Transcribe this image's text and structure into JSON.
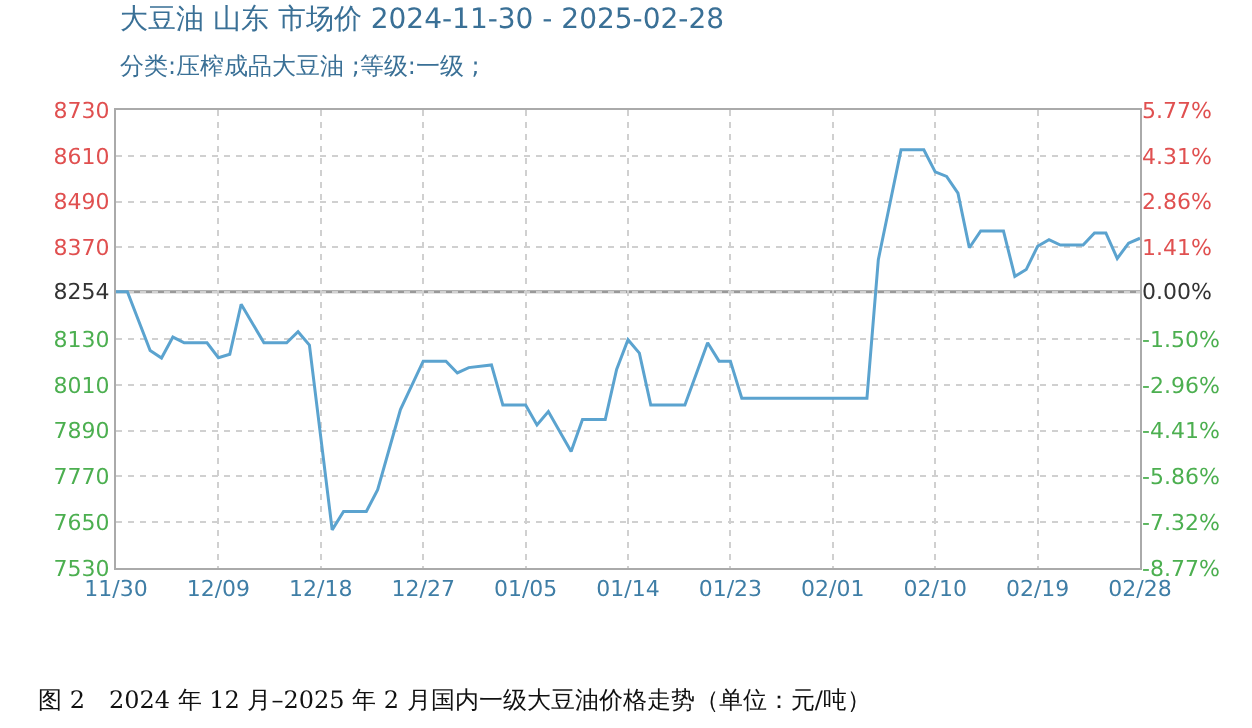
{
  "chart_data": {
    "type": "line",
    "title": "大豆油 山东 市场价 2024-11-30 - 2025-02-28",
    "subtitle": "分类:压榨成品大豆油 ;等级:一级 ;",
    "annotations": [
      "图 2　2024 年 12 月–2025 年 2 月国内一级大豆油价格走势（单位：元/吨）"
    ],
    "x": [
      "2024-11-30",
      "2024-12-01",
      "2024-12-03",
      "2024-12-04",
      "2024-12-05",
      "2024-12-06",
      "2024-12-08",
      "2024-12-09",
      "2024-12-10",
      "2024-12-11",
      "2024-12-13",
      "2024-12-15",
      "2024-12-16",
      "2024-12-17",
      "2024-12-19",
      "2024-12-20",
      "2024-12-22",
      "2024-12-23",
      "2024-12-25",
      "2024-12-27",
      "2024-12-29",
      "2024-12-30",
      "2024-12-31",
      "2025-01-02",
      "2025-01-03",
      "2025-01-05",
      "2025-01-06",
      "2025-01-07",
      "2025-01-09",
      "2025-01-10",
      "2025-01-12",
      "2025-01-13",
      "2025-01-14",
      "2025-01-15",
      "2025-01-16",
      "2025-01-19",
      "2025-01-21",
      "2025-01-22",
      "2025-01-23",
      "2025-01-24",
      "2025-02-04",
      "2025-02-05",
      "2025-02-07",
      "2025-02-09",
      "2025-02-10",
      "2025-02-11",
      "2025-02-12",
      "2025-02-13",
      "2025-02-14",
      "2025-02-16",
      "2025-02-17",
      "2025-02-18",
      "2025-02-19",
      "2025-02-20",
      "2025-02-21",
      "2025-02-23",
      "2025-02-24",
      "2025-02-25",
      "2025-02-26",
      "2025-02-27",
      "2025-02-28"
    ],
    "series": [
      {
        "color": "#5ba3cf",
        "values": [
          8254,
          8254,
          8100,
          8080,
          8135,
          8120,
          8120,
          8081,
          8090,
          8221,
          8120,
          8120,
          8149,
          8114,
          7630,
          7678,
          7678,
          7735,
          7945,
          8072,
          8072,
          8041,
          8055,
          8062,
          7957,
          7957,
          7905,
          7940,
          7835,
          7919,
          7919,
          8050,
          8128,
          8093,
          7957,
          7957,
          8120,
          8072,
          8072,
          7975,
          7975,
          8338,
          8626,
          8626,
          8568,
          8556,
          8512,
          8369,
          8413,
          8413,
          8294,
          8312,
          8373,
          8390,
          8376,
          8376,
          8408,
          8408,
          8341,
          8381,
          8394
        ]
      }
    ],
    "xlim": [
      "2024-11-30",
      "2025-02-28"
    ],
    "xticks": [
      {
        "value": "2024-11-30",
        "label": "11/30"
      },
      {
        "value": "2024-12-09",
        "label": "12/09"
      },
      {
        "value": "2024-12-18",
        "label": "12/18"
      },
      {
        "value": "2024-12-27",
        "label": "12/27"
      },
      {
        "value": "2025-01-05",
        "label": "01/05"
      },
      {
        "value": "2025-01-14",
        "label": "01/14"
      },
      {
        "value": "2025-01-23",
        "label": "01/23"
      },
      {
        "value": "2025-02-01",
        "label": "02/01"
      },
      {
        "value": "2025-02-10",
        "label": "02/10"
      },
      {
        "value": "2025-02-19",
        "label": "02/19"
      },
      {
        "value": "2025-02-28",
        "label": "02/28"
      }
    ],
    "ylim": [
      7530,
      8730
    ],
    "yticks": [
      7530,
      7650,
      7770,
      7890,
      8010,
      8130,
      8254,
      8370,
      8490,
      8610,
      8730
    ],
    "y2lim": [
      -8.77,
      5.77
    ],
    "y2ticks": [
      {
        "value": -8.77,
        "label": "-8.77%"
      },
      {
        "value": -7.32,
        "label": "-7.32%"
      },
      {
        "value": -5.86,
        "label": "-5.86%"
      },
      {
        "value": -4.41,
        "label": "-4.41%"
      },
      {
        "value": -2.96,
        "label": "-2.96%"
      },
      {
        "value": -1.5,
        "label": "-1.50%"
      },
      {
        "value": 0,
        "label": "0.00%"
      },
      {
        "value": 1.41,
        "label": "1.41%"
      },
      {
        "value": 2.86,
        "label": "2.86%"
      },
      {
        "value": 4.31,
        "label": "4.31%"
      },
      {
        "value": 5.77,
        "label": "5.77%"
      }
    ],
    "ref_lines": [
      {
        "axis": "y",
        "value": 8254,
        "color": "#999999"
      }
    ],
    "grid": true,
    "marker": "none",
    "line_style": "solid"
  }
}
